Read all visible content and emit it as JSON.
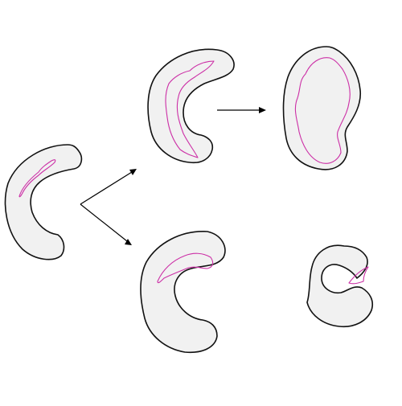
{
  "colors": {
    "background": "#ffffff",
    "shape_fill": "#f1f1f1",
    "shape_outline": "#111111",
    "cavity_outline": "#cc2fa6",
    "arrow": "#000000"
  }
}
